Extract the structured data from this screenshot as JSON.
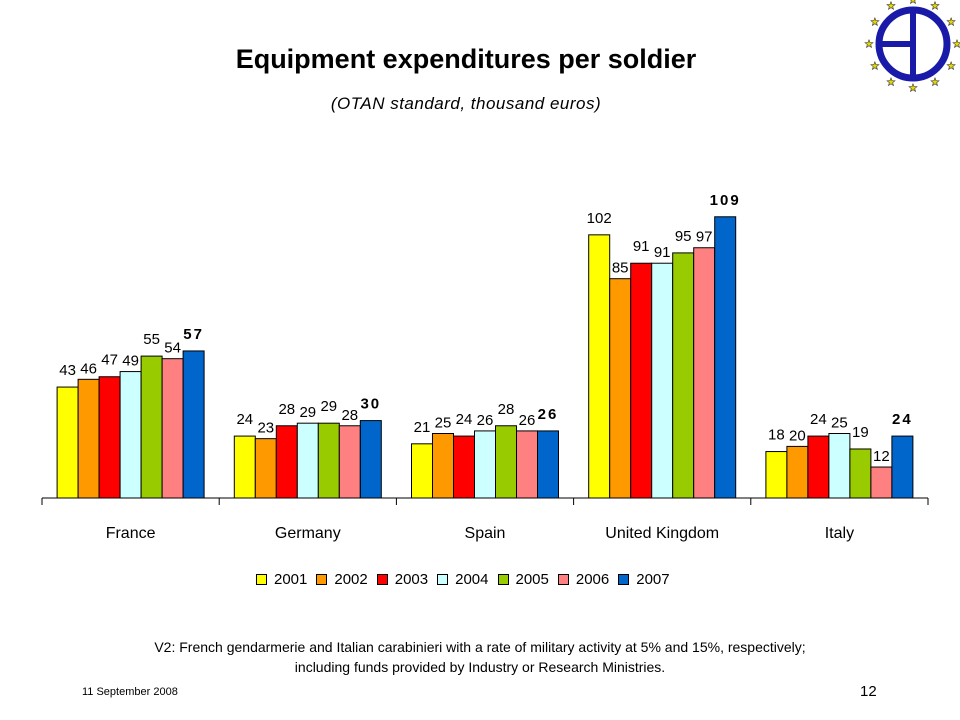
{
  "slide": {
    "title": "Equipment expenditures per soldier",
    "subtitle": "(OTAN standard, thousand euros)",
    "footnote_line1": "V2: French gendarmerie and Italian carabinieri with a rate of military activity at 5% and 15%, respectively;",
    "footnote_line2": "including funds provided by Industry or Research Ministries.",
    "date": "11 September 2008",
    "page_number": "12",
    "logo_icon": "eu-circle-stars-logo",
    "colors": {
      "logo_blue": "#1a1aa8",
      "logo_star": "#e8d800"
    }
  },
  "chart_data": {
    "type": "bar",
    "title": "Equipment expenditures per soldier",
    "subtitle": "(OTAN standard, thousand euros)",
    "categories": [
      "France",
      "Germany",
      "Spain",
      "United Kingdom",
      "Italy"
    ],
    "series": [
      {
        "name": "2001",
        "color": "#ffff00",
        "values": [
          43,
          24,
          21,
          102,
          18
        ]
      },
      {
        "name": "2002",
        "color": "#ff9900",
        "values": [
          46,
          23,
          25,
          85,
          20
        ]
      },
      {
        "name": "2003",
        "color": "#ff0000",
        "values": [
          47,
          28,
          24,
          91,
          24
        ]
      },
      {
        "name": "2004",
        "color": "#ccffff",
        "values": [
          49,
          29,
          26,
          91,
          25
        ]
      },
      {
        "name": "2005",
        "color": "#99cc00",
        "values": [
          55,
          29,
          28,
          95,
          19
        ]
      },
      {
        "name": "2006",
        "color": "#ff8080",
        "values": [
          54,
          28,
          26,
          97,
          12
        ]
      },
      {
        "name": "2007",
        "color": "#0066cc",
        "values": [
          57,
          30,
          26,
          109,
          24
        ]
      }
    ],
    "highlight_series": "2007",
    "ylim": [
      0,
      120
    ],
    "grid": false,
    "legend_position": "bottom"
  }
}
